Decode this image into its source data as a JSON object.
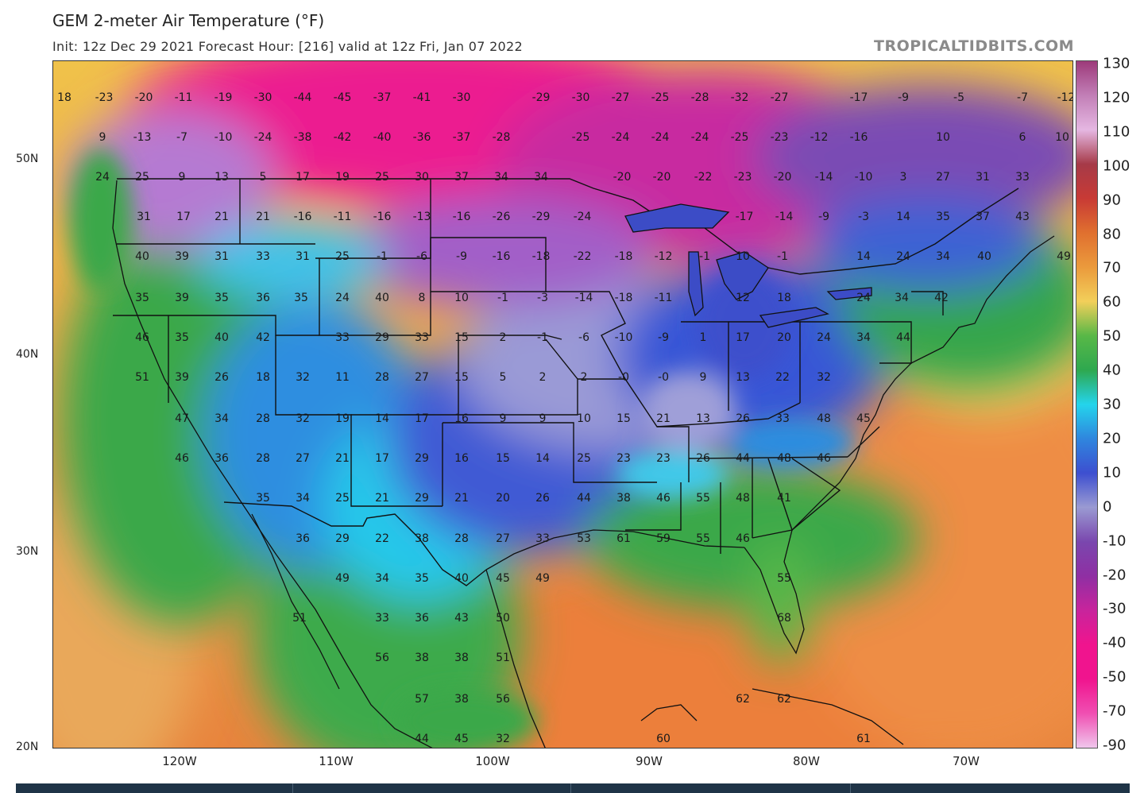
{
  "header": {
    "title": "GEM 2-meter Air Temperature (°F)",
    "subtitle": "Init: 12z Dec 29 2021   Forecast Hour: [216]   valid at 12z Fri, Jan 07 2022",
    "watermark": "TROPICALTIDBITS.COM"
  },
  "axes": {
    "lat_labels": [
      "50N",
      "40N",
      "30N",
      "20N"
    ],
    "lon_labels": [
      "120W",
      "110W",
      "100W",
      "90W",
      "80W",
      "70W"
    ]
  },
  "colorbar": {
    "labels": [
      "130",
      "120",
      "110",
      "100",
      "90",
      "80",
      "70",
      "60",
      "50",
      "40",
      "30",
      "20",
      "10",
      "0",
      "-10",
      "-20",
      "-30",
      "-40",
      "-50",
      "-70",
      "-90"
    ],
    "colors": [
      "#9d3a7a",
      "#c27fb7",
      "#e5b7e2",
      "#a63a48",
      "#c83a35",
      "#e0702f",
      "#eb9a3c",
      "#f2cf5a",
      "#58b847",
      "#2ea84f",
      "#24d4ec",
      "#2f86de",
      "#3d4fd0",
      "#9a9ad2",
      "#7a47ae",
      "#8f2fa3",
      "#c8249c",
      "#f0148e",
      "#f0148e",
      "#f04fb2",
      "#f0c6ec"
    ]
  },
  "temperatures": [
    {
      "v": "18"
    },
    {
      "v": "-23"
    },
    {
      "v": "-20"
    },
    {
      "v": "-11"
    },
    {
      "v": "-19"
    },
    {
      "v": "-30"
    },
    {
      "v": "-44"
    },
    {
      "v": "-45"
    },
    {
      "v": "-37"
    },
    {
      "v": "-41"
    },
    {
      "v": "-30"
    },
    {
      "v": "-29"
    },
    {
      "v": "-30"
    },
    {
      "v": "-27"
    },
    {
      "v": "-25"
    },
    {
      "v": "-28"
    },
    {
      "v": "-32"
    },
    {
      "v": "-27"
    },
    {
      "v": "-17"
    },
    {
      "v": "-9"
    },
    {
      "v": "-5"
    },
    {
      "v": "-7"
    },
    {
      "v": "-12"
    },
    {
      "v": "9"
    },
    {
      "v": "-13"
    },
    {
      "v": "-7"
    },
    {
      "v": "-10"
    },
    {
      "v": "-24"
    },
    {
      "v": "-38"
    },
    {
      "v": "-42"
    },
    {
      "v": "-40"
    },
    {
      "v": "-36"
    },
    {
      "v": "-37"
    },
    {
      "v": "-28"
    },
    {
      "v": "-25"
    },
    {
      "v": "-24"
    },
    {
      "v": "-24"
    },
    {
      "v": "-24"
    },
    {
      "v": "-25"
    },
    {
      "v": "-23"
    },
    {
      "v": "-12"
    },
    {
      "v": "-16"
    },
    {
      "v": "10"
    },
    {
      "v": "6"
    },
    {
      "v": "10"
    },
    {
      "v": "24"
    },
    {
      "v": "25"
    },
    {
      "v": "9"
    },
    {
      "v": "13"
    },
    {
      "v": "5"
    },
    {
      "v": "17"
    },
    {
      "v": "19"
    },
    {
      "v": "25"
    },
    {
      "v": "30"
    },
    {
      "v": "37"
    },
    {
      "v": "34"
    },
    {
      "v": "34"
    },
    {
      "v": "-20"
    },
    {
      "v": "-20"
    },
    {
      "v": "-22"
    },
    {
      "v": "-23"
    },
    {
      "v": "-20"
    },
    {
      "v": "-14"
    },
    {
      "v": "-10"
    },
    {
      "v": "3"
    },
    {
      "v": "27"
    },
    {
      "v": "31"
    },
    {
      "v": "33"
    },
    {
      "v": "31"
    },
    {
      "v": "17"
    },
    {
      "v": "21"
    },
    {
      "v": "21"
    },
    {
      "v": "-16"
    },
    {
      "v": "-11"
    },
    {
      "v": "-16"
    },
    {
      "v": "-13"
    },
    {
      "v": "-16"
    },
    {
      "v": "-26"
    },
    {
      "v": "-29"
    },
    {
      "v": "-24"
    },
    {
      "v": "-17"
    },
    {
      "v": "-14"
    },
    {
      "v": "-9"
    },
    {
      "v": "-3"
    },
    {
      "v": "14"
    },
    {
      "v": "35"
    },
    {
      "v": "37"
    },
    {
      "v": "43"
    },
    {
      "v": "40"
    },
    {
      "v": "39"
    },
    {
      "v": "31"
    },
    {
      "v": "33"
    },
    {
      "v": "31"
    },
    {
      "v": "25"
    },
    {
      "v": "-1"
    },
    {
      "v": "-6"
    },
    {
      "v": "-9"
    },
    {
      "v": "-16"
    },
    {
      "v": "-18"
    },
    {
      "v": "-22"
    },
    {
      "v": "-18"
    },
    {
      "v": "-12"
    },
    {
      "v": "-1"
    },
    {
      "v": "10"
    },
    {
      "v": "-1"
    },
    {
      "v": "14"
    },
    {
      "v": "24"
    },
    {
      "v": "34"
    },
    {
      "v": "40"
    },
    {
      "v": "49"
    },
    {
      "v": "35"
    },
    {
      "v": "39"
    },
    {
      "v": "35"
    },
    {
      "v": "36"
    },
    {
      "v": "35"
    },
    {
      "v": "24"
    },
    {
      "v": "40"
    },
    {
      "v": "8"
    },
    {
      "v": "10"
    },
    {
      "v": "-1"
    },
    {
      "v": "-3"
    },
    {
      "v": "-14"
    },
    {
      "v": "-18"
    },
    {
      "v": "-11"
    },
    {
      "v": "12"
    },
    {
      "v": "18"
    },
    {
      "v": "24"
    },
    {
      "v": "34"
    },
    {
      "v": "42"
    },
    {
      "v": "46"
    },
    {
      "v": "35"
    },
    {
      "v": "40"
    },
    {
      "v": "42"
    },
    {
      "v": "33"
    },
    {
      "v": "29"
    },
    {
      "v": "33"
    },
    {
      "v": "15"
    },
    {
      "v": "2"
    },
    {
      "v": "-1"
    },
    {
      "v": "-6"
    },
    {
      "v": "-10"
    },
    {
      "v": "-9"
    },
    {
      "v": "1"
    },
    {
      "v": "17"
    },
    {
      "v": "20"
    },
    {
      "v": "24"
    },
    {
      "v": "34"
    },
    {
      "v": "44"
    },
    {
      "v": "51"
    },
    {
      "v": "39"
    },
    {
      "v": "26"
    },
    {
      "v": "18"
    },
    {
      "v": "32"
    },
    {
      "v": "11"
    },
    {
      "v": "28"
    },
    {
      "v": "27"
    },
    {
      "v": "15"
    },
    {
      "v": "5"
    },
    {
      "v": "2"
    },
    {
      "v": "2"
    },
    {
      "v": "-0"
    },
    {
      "v": "-0"
    },
    {
      "v": "9"
    },
    {
      "v": "13"
    },
    {
      "v": "22"
    },
    {
      "v": "32"
    },
    {
      "v": "47"
    },
    {
      "v": "34"
    },
    {
      "v": "28"
    },
    {
      "v": "32"
    },
    {
      "v": "19"
    },
    {
      "v": "14"
    },
    {
      "v": "17"
    },
    {
      "v": "16"
    },
    {
      "v": "9"
    },
    {
      "v": "9"
    },
    {
      "v": "10"
    },
    {
      "v": "15"
    },
    {
      "v": "21"
    },
    {
      "v": "13"
    },
    {
      "v": "26"
    },
    {
      "v": "33"
    },
    {
      "v": "48"
    },
    {
      "v": "45"
    },
    {
      "v": "46"
    },
    {
      "v": "36"
    },
    {
      "v": "28"
    },
    {
      "v": "27"
    },
    {
      "v": "21"
    },
    {
      "v": "17"
    },
    {
      "v": "29"
    },
    {
      "v": "16"
    },
    {
      "v": "15"
    },
    {
      "v": "14"
    },
    {
      "v": "25"
    },
    {
      "v": "23"
    },
    {
      "v": "23"
    },
    {
      "v": "26"
    },
    {
      "v": "44"
    },
    {
      "v": "48"
    },
    {
      "v": "46"
    },
    {
      "v": "35"
    },
    {
      "v": "34"
    },
    {
      "v": "25"
    },
    {
      "v": "21"
    },
    {
      "v": "29"
    },
    {
      "v": "21"
    },
    {
      "v": "20"
    },
    {
      "v": "26"
    },
    {
      "v": "44"
    },
    {
      "v": "38"
    },
    {
      "v": "46"
    },
    {
      "v": "55"
    },
    {
      "v": "48"
    },
    {
      "v": "41"
    },
    {
      "v": "36"
    },
    {
      "v": "29"
    },
    {
      "v": "22"
    },
    {
      "v": "38"
    },
    {
      "v": "28"
    },
    {
      "v": "27"
    },
    {
      "v": "33"
    },
    {
      "v": "53"
    },
    {
      "v": "61"
    },
    {
      "v": "59"
    },
    {
      "v": "55"
    },
    {
      "v": "46"
    },
    {
      "v": "49"
    },
    {
      "v": "34"
    },
    {
      "v": "35"
    },
    {
      "v": "40"
    },
    {
      "v": "45"
    },
    {
      "v": "49"
    },
    {
      "v": "55"
    },
    {
      "v": "51"
    },
    {
      "v": "33"
    },
    {
      "v": "36"
    },
    {
      "v": "43"
    },
    {
      "v": "50"
    },
    {
      "v": "68"
    },
    {
      "v": "56"
    },
    {
      "v": "38"
    },
    {
      "v": "38"
    },
    {
      "v": "51"
    },
    {
      "v": "57"
    },
    {
      "v": "38"
    },
    {
      "v": "56"
    },
    {
      "v": "62"
    },
    {
      "v": "62"
    },
    {
      "v": "44"
    },
    {
      "v": "45"
    },
    {
      "v": "32"
    },
    {
      "v": "60"
    },
    {
      "v": "61"
    }
  ]
}
